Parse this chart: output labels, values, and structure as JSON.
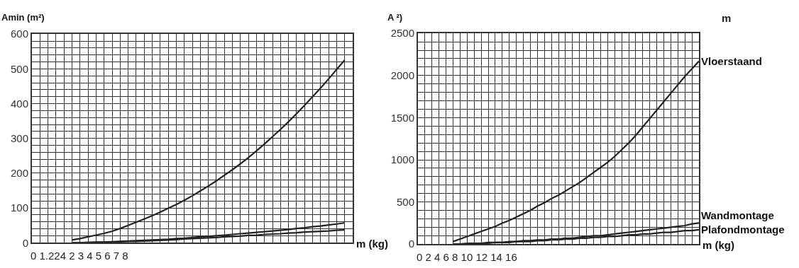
{
  "chart_data": [
    {
      "type": "line",
      "ylabel": "Amin (m²)",
      "xlabel": "m (kg)",
      "annotations": [
        "0 1.224 2 3 4 5 6 7 8"
      ],
      "categories": [
        null,
        null,
        null,
        null,
        null,
        null,
        null,
        null,
        null,
        null,
        null,
        null,
        null,
        null,
        null,
        null,
        null,
        null,
        null,
        null,
        null,
        null,
        null,
        null,
        null,
        null,
        null,
        null,
        null,
        null,
        null,
        null,
        null,
        null,
        null,
        null,
        null,
        null,
        null,
        null,
        null
      ],
      "series": [
        {
          "color": "#222222",
          "values": [
            null,
            null,
            null,
            null,
            null,
            8,
            12,
            17,
            22,
            27,
            33,
            41,
            50,
            59,
            68,
            78,
            88,
            99,
            110,
            122,
            135,
            149,
            163,
            178,
            194,
            210,
            227,
            245,
            264,
            284,
            305,
            326,
            348,
            371,
            395,
            420,
            445,
            471,
            498,
            525,
            null
          ]
        },
        {
          "color": "#222222",
          "values": [
            null,
            null,
            null,
            null,
            null,
            0,
            0,
            1,
            2,
            2,
            3,
            4,
            5,
            6,
            7,
            8,
            9,
            10,
            12,
            13,
            15,
            17,
            18,
            20,
            22,
            24,
            26,
            28,
            30,
            32,
            34,
            36,
            38,
            41,
            43,
            46,
            48,
            51,
            54,
            57,
            null
          ]
        },
        {
          "color": "#222222",
          "values": [
            null,
            null,
            null,
            null,
            null,
            0,
            0,
            1,
            1,
            2,
            2,
            3,
            4,
            4,
            5,
            6,
            7,
            8,
            9,
            11,
            12,
            13,
            14,
            15,
            17,
            18,
            19,
            21,
            22,
            24,
            25,
            26,
            28,
            29,
            31,
            32,
            33,
            34,
            36,
            37,
            null
          ]
        }
      ],
      "ylim": [
        0,
        600
      ],
      "yticks": [
        0,
        {
          "value": 20,
          "label": null
        },
        {
          "value": 40,
          "label": null
        },
        {
          "value": 60,
          "label": null
        },
        {
          "value": 80,
          "label": null
        },
        100,
        {
          "value": 120,
          "label": null
        },
        {
          "value": 140,
          "label": null
        },
        {
          "value": 160,
          "label": null
        },
        {
          "value": 180,
          "label": null
        },
        200,
        {
          "value": 220,
          "label": null
        },
        {
          "value": 240,
          "label": null
        },
        {
          "value": 260,
          "label": null
        },
        {
          "value": 280,
          "label": null
        },
        300,
        {
          "value": 320,
          "label": null
        },
        {
          "value": 340,
          "label": null
        },
        {
          "value": 360,
          "label": null
        },
        {
          "value": 380,
          "label": null
        },
        400,
        {
          "value": 420,
          "label": null
        },
        {
          "value": 440,
          "label": null
        },
        {
          "value": 460,
          "label": null
        },
        {
          "value": 480,
          "label": null
        },
        500,
        {
          "value": 520,
          "label": null
        },
        {
          "value": 540,
          "label": null
        },
        {
          "value": 560,
          "label": null
        },
        {
          "value": 580,
          "label": null
        },
        600
      ],
      "grid": true,
      "tick_labels": "y"
    },
    {
      "type": "line",
      "ylabel": "A ²)",
      "xlabel": "m (kg)",
      "annotations": [
        "0 2 4 6 8 10 12 14 16",
        "m"
      ],
      "categories": [
        null,
        null,
        null,
        null,
        null,
        null,
        null,
        null,
        null,
        null,
        null,
        null,
        null,
        null,
        null,
        null,
        null,
        null,
        null,
        null,
        null,
        null,
        null,
        null,
        null,
        null,
        null,
        null,
        null,
        null,
        null,
        null,
        null,
        null,
        null,
        null,
        null,
        null,
        null,
        null,
        null
      ],
      "series": [
        {
          "name": "Vloerstaand",
          "color": "#222222",
          "values": [
            null,
            null,
            null,
            null,
            null,
            30,
            60,
            90,
            120,
            150,
            180,
            210,
            250,
            280,
            320,
            360,
            400,
            450,
            490,
            540,
            580,
            630,
            680,
            730,
            790,
            850,
            910,
            970,
            1040,
            1120,
            1200,
            1290,
            1390,
            1490,
            1590,
            1690,
            1790,
            1890,
            1990,
            2080,
            2170
          ]
        },
        {
          "name": "Wandmontage",
          "color": "#222222",
          "values": [
            null,
            null,
            null,
            null,
            null,
            0,
            0,
            10,
            10,
            10,
            20,
            20,
            20,
            30,
            30,
            40,
            40,
            50,
            50,
            60,
            60,
            70,
            70,
            80,
            90,
            100,
            100,
            110,
            120,
            130,
            140,
            150,
            160,
            170,
            180,
            190,
            200,
            210,
            220,
            240,
            250
          ]
        },
        {
          "name": "Plafondmontage",
          "color": "#222222",
          "values": [
            null,
            null,
            null,
            null,
            null,
            0,
            0,
            0,
            10,
            10,
            10,
            20,
            20,
            20,
            30,
            30,
            30,
            40,
            40,
            50,
            50,
            60,
            60,
            70,
            70,
            80,
            80,
            90,
            90,
            100,
            110,
            110,
            120,
            120,
            130,
            140,
            140,
            150,
            160,
            160,
            170
          ]
        }
      ],
      "ylim": [
        0,
        2500
      ],
      "yticks": [
        0,
        {
          "value": 100,
          "label": null
        },
        {
          "value": 200,
          "label": null
        },
        {
          "value": 300,
          "label": null
        },
        {
          "value": 400,
          "label": null
        },
        500,
        {
          "value": 600,
          "label": null
        },
        {
          "value": 700,
          "label": null
        },
        {
          "value": 800,
          "label": null
        },
        {
          "value": 900,
          "label": null
        },
        1000,
        {
          "value": 1100,
          "label": null
        },
        {
          "value": 1200,
          "label": null
        },
        {
          "value": 1300,
          "label": null
        },
        {
          "value": 1400,
          "label": null
        },
        1500,
        {
          "value": 1600,
          "label": null
        },
        {
          "value": 1700,
          "label": null
        },
        {
          "value": 1800,
          "label": null
        },
        {
          "value": 1900,
          "label": null
        },
        2000,
        {
          "value": 2100,
          "label": null
        },
        {
          "value": 2200,
          "label": null
        },
        {
          "value": 2300,
          "label": null
        },
        {
          "value": 2400,
          "label": null
        },
        2500
      ],
      "grid": true,
      "tick_labels": "y"
    }
  ]
}
